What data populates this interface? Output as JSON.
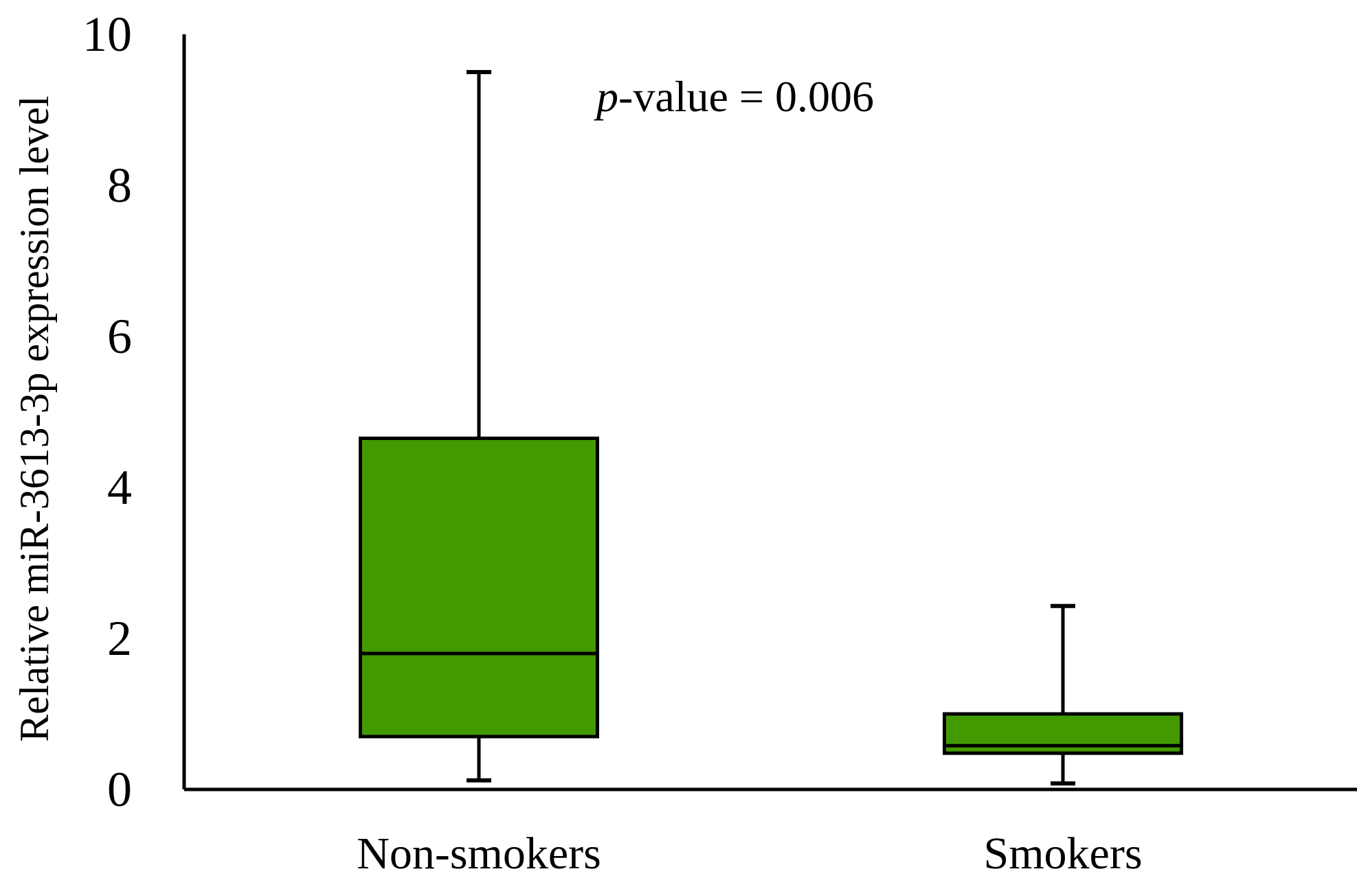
{
  "chart_data": {
    "type": "boxplot",
    "categories": [
      "Non-smokers",
      "Smokers"
    ],
    "boxes": [
      {
        "category": "Non-smokers",
        "min": 0.12,
        "q1": 0.7,
        "median": 1.8,
        "q3": 4.65,
        "max": 9.5
      },
      {
        "category": "Smokers",
        "min": 0.08,
        "q1": 0.48,
        "median": 0.58,
        "q3": 1.0,
        "max": 2.43
      }
    ],
    "ylabel": "Relative miR-3613-3p expression level",
    "xlabel": "",
    "ylim": [
      0,
      10
    ],
    "yticks": [
      "0",
      "2",
      "4",
      "6",
      "8",
      "10"
    ],
    "grid": false,
    "annotation": {
      "italic": "p",
      "text": "-value = 0.006"
    },
    "colors": {
      "box_fill": "#439a00",
      "stroke": "#000000"
    }
  }
}
